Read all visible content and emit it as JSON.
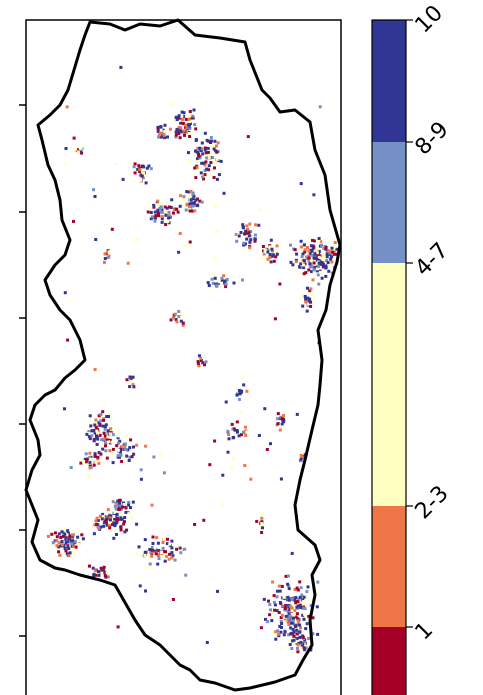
{
  "legend": {
    "title": "",
    "categories": [
      {
        "label": "10",
        "color": "#313695"
      },
      {
        "label": "8-9",
        "color": "#7590c5"
      },
      {
        "label": "4-7",
        "color": "#ffffc0"
      },
      {
        "label": "2-3",
        "color": "#ef7646"
      },
      {
        "label": "1",
        "color": "#a50026"
      }
    ]
  },
  "map": {
    "boundary_color": "#000000",
    "background_color": "#ffffff"
  }
}
